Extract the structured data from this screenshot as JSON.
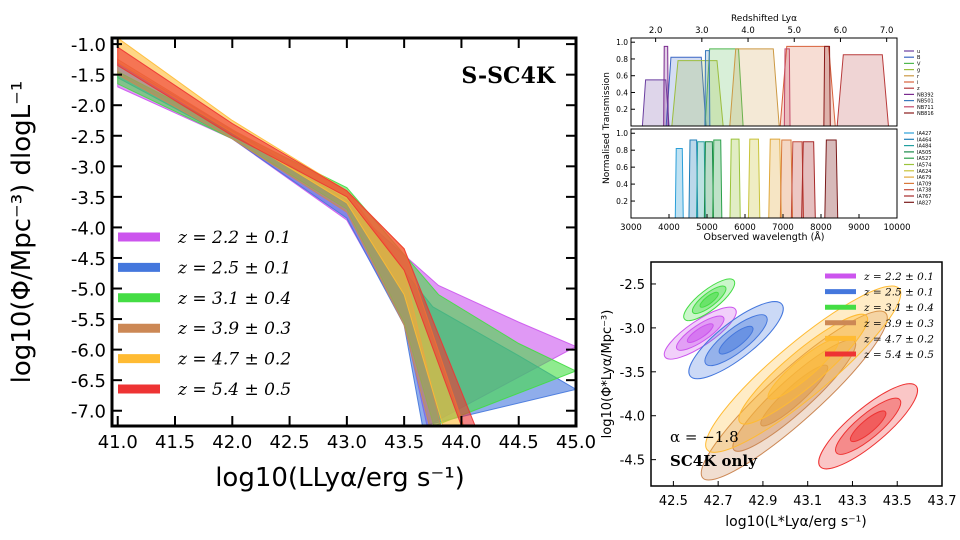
{
  "chart_data": [
    {
      "type": "area",
      "panel": "main-lf",
      "annotation": "S-SC4K",
      "xlabel": "log10(LLyα/erg s⁻¹)",
      "ylabel": "log10(Φ/Mpc⁻³) dlogL⁻¹",
      "xlim": [
        40.95,
        45.0
      ],
      "ylim": [
        -7.25,
        -0.9
      ],
      "xticks": [
        "41.0",
        "41.5",
        "42.0",
        "42.5",
        "43.0",
        "43.5",
        "44.0",
        "44.5",
        "45.0"
      ],
      "yticks": [
        "-1.0",
        "-1.5",
        "-2.0",
        "-2.5",
        "-3.0",
        "-3.5",
        "-4.0",
        "-4.5",
        "-5.0",
        "-5.5",
        "-6.0",
        "-6.5",
        "-7.0"
      ],
      "legend_position": "lower-left",
      "series": [
        {
          "name": "z = 2.2 ± 0.1",
          "color": "#cc55ee",
          "logL_star": 42.69,
          "logPhi_star": -3.33,
          "alpha": -1.8,
          "upper": [
            [
              41.0,
              -1.45
            ],
            [
              42.0,
              -2.45
            ],
            [
              43.0,
              -3.62
            ],
            [
              43.8,
              -4.95
            ],
            [
              44.5,
              -5.55
            ],
            [
              45.0,
              -5.95
            ]
          ],
          "lower": [
            [
              41.0,
              -1.7
            ],
            [
              42.0,
              -2.55
            ],
            [
              43.0,
              -3.88
            ],
            [
              43.5,
              -5.55
            ],
            [
              43.7,
              -7.25
            ]
          ]
        },
        {
          "name": "z = 2.5 ± 0.1",
          "color": "#4477dd",
          "logL_star": 42.76,
          "logPhi_star": -3.18,
          "alpha": -1.8,
          "upper": [
            [
              41.0,
              -1.3
            ],
            [
              42.0,
              -2.4
            ],
            [
              43.0,
              -3.55
            ],
            [
              43.75,
              -5.3
            ],
            [
              44.5,
              -6.1
            ],
            [
              45.0,
              -6.65
            ]
          ],
          "lower": [
            [
              41.0,
              -1.55
            ],
            [
              42.0,
              -2.55
            ],
            [
              43.0,
              -3.85
            ],
            [
              43.5,
              -5.6
            ],
            [
              43.66,
              -7.25
            ]
          ]
        },
        {
          "name": "z = 3.1 ± 0.4",
          "color": "#44dd44",
          "logL_star": 42.8,
          "logPhi_star": -2.91,
          "alpha": -1.8,
          "upper": [
            [
              41.0,
              -1.45
            ],
            [
              42.0,
              -2.42
            ],
            [
              43.0,
              -3.35
            ],
            [
              43.8,
              -5.1
            ],
            [
              44.5,
              -5.9
            ],
            [
              45.0,
              -6.35
            ]
          ],
          "lower": [
            [
              41.0,
              -1.65
            ],
            [
              42.0,
              -2.55
            ],
            [
              43.0,
              -3.7
            ],
            [
              43.5,
              -5.55
            ],
            [
              43.76,
              -7.25
            ]
          ]
        },
        {
          "name": "z = 3.9 ± 0.3",
          "color": "#cc8855",
          "logL_star": 42.93,
          "logPhi_star": -3.56,
          "alpha": -1.8,
          "upper": [
            [
              41.0,
              -1.25
            ],
            [
              42.0,
              -2.4
            ],
            [
              43.0,
              -3.4
            ],
            [
              43.5,
              -4.7
            ],
            [
              43.82,
              -7.25
            ]
          ],
          "lower": [
            [
              41.0,
              -1.5
            ],
            [
              42.0,
              -2.55
            ],
            [
              43.0,
              -3.75
            ],
            [
              43.5,
              -5.6
            ],
            [
              43.72,
              -7.25
            ]
          ]
        },
        {
          "name": "z = 4.7 ± 0.2",
          "color": "#ffbb33",
          "logL_star": 43.05,
          "logPhi_star": -3.73,
          "alpha": -1.8,
          "upper": [
            [
              41.0,
              -0.9
            ],
            [
              42.0,
              -2.25
            ],
            [
              43.0,
              -3.4
            ],
            [
              43.5,
              -4.35
            ],
            [
              44.02,
              -7.25
            ]
          ],
          "lower": [
            [
              41.0,
              -1.3
            ],
            [
              42.0,
              -2.45
            ],
            [
              43.0,
              -3.6
            ],
            [
              43.5,
              -5.1
            ],
            [
              43.84,
              -7.25
            ]
          ]
        },
        {
          "name": "z = 5.4 ± 0.5",
          "color": "#ee3333",
          "logL_star": 43.3,
          "logPhi_star": -4.17,
          "alpha": -1.8,
          "upper": [
            [
              41.0,
              -1.05
            ],
            [
              42.0,
              -2.3
            ],
            [
              43.0,
              -3.4
            ],
            [
              43.5,
              -4.35
            ],
            [
              44.12,
              -7.25
            ]
          ],
          "lower": [
            [
              41.0,
              -1.35
            ],
            [
              42.0,
              -2.5
            ],
            [
              43.0,
              -3.5
            ],
            [
              43.5,
              -4.7
            ],
            [
              44.0,
              -7.25
            ]
          ]
        }
      ]
    },
    {
      "type": "area",
      "panel": "filter-transmission",
      "top_axis_label": "Redshifted Lyα",
      "top_ticks": [
        "2.0",
        "3.0",
        "4.0",
        "5.0",
        "6.0",
        "7.0"
      ],
      "xlabel": "Observed wavelength (Å)",
      "ylabel": "Normalised Transmission",
      "xlim": [
        3000,
        10000
      ],
      "ylim": [
        0,
        1.05
      ],
      "xticks": [
        "3000",
        "4000",
        "5000",
        "6000",
        "7000",
        "8000",
        "9000",
        "10000"
      ],
      "yticks": [
        "0.2",
        "0.4",
        "0.6",
        "0.8",
        "1.0"
      ],
      "broad_legend": [
        "u",
        "B",
        "V",
        "g",
        "r",
        "i",
        "z",
        "NB392",
        "NB501",
        "NB711",
        "NB816"
      ],
      "broad_colors": [
        "#6b3fa0",
        "#3a66c4",
        "#4fb84f",
        "#9bbd3c",
        "#cc9944",
        "#d9623b",
        "#b83a3a",
        "#7a2a8f",
        "#3a7abd",
        "#c44a6a",
        "#8a1a1a"
      ],
      "broad_filters": [
        {
          "center": 3650,
          "width": 700,
          "peak": 0.55
        },
        {
          "center": 4450,
          "width": 1050,
          "peak": 0.82
        },
        {
          "center": 5450,
          "width": 1000,
          "peak": 0.92
        },
        {
          "center": 4750,
          "width": 1350,
          "peak": 0.78
        },
        {
          "center": 6250,
          "width": 1300,
          "peak": 0.92
        },
        {
          "center": 7650,
          "width": 1450,
          "peak": 0.95
        },
        {
          "center": 9100,
          "width": 1350,
          "peak": 0.85
        },
        {
          "center": 3920,
          "width": 120,
          "peak": 0.95
        },
        {
          "center": 5010,
          "width": 130,
          "peak": 0.9
        },
        {
          "center": 7110,
          "width": 150,
          "peak": 0.92
        },
        {
          "center": 8160,
          "width": 170,
          "peak": 0.95
        }
      ],
      "medium_legend": [
        "IA427",
        "IA464",
        "IA484",
        "IA505",
        "IA527",
        "IA574",
        "IA624",
        "IA679",
        "IA709",
        "IA738",
        "IA767",
        "IA827"
      ],
      "medium_colors": [
        "#2b9fd8",
        "#1f7fb8",
        "#22a0a0",
        "#1a8a4a",
        "#2aa04a",
        "#9bc43a",
        "#c9c43a",
        "#e0a83a",
        "#d97a3a",
        "#c44a3a",
        "#a82a2a",
        "#7a1a1a"
      ],
      "medium_filters": [
        {
          "center": 4270,
          "width": 210,
          "peak": 0.82
        },
        {
          "center": 4640,
          "width": 230,
          "peak": 0.92
        },
        {
          "center": 4840,
          "width": 230,
          "peak": 0.9
        },
        {
          "center": 5050,
          "width": 240,
          "peak": 0.9
        },
        {
          "center": 5270,
          "width": 240,
          "peak": 0.92
        },
        {
          "center": 5740,
          "width": 270,
          "peak": 0.93
        },
        {
          "center": 6240,
          "width": 300,
          "peak": 0.93
        },
        {
          "center": 6790,
          "width": 330,
          "peak": 0.93
        },
        {
          "center": 7090,
          "width": 320,
          "peak": 0.92
        },
        {
          "center": 7380,
          "width": 320,
          "peak": 0.9
        },
        {
          "center": 7670,
          "width": 360,
          "peak": 0.9
        },
        {
          "center": 8270,
          "width": 340,
          "peak": 0.92
        }
      ]
    },
    {
      "type": "scatter",
      "panel": "schechter-contours",
      "xlabel": "log10(L*Lyα/erg s⁻¹)",
      "ylabel": "log10(Φ*Lyα/Mpc⁻³)",
      "xlim": [
        42.4,
        43.7
      ],
      "ylim": [
        -4.8,
        -2.25
      ],
      "xticks": [
        "42.5",
        "42.7",
        "42.9",
        "43.1",
        "43.3",
        "43.5",
        "43.7"
      ],
      "yticks": [
        "-2.5",
        "-3.0",
        "-3.5",
        "-4.0",
        "-4.5"
      ],
      "annotation_alpha": "α = −1.8",
      "annotation_sample": "SC4K only",
      "legend_position": "top-right",
      "contours": [
        {
          "name": "z = 2.2 ± 0.1",
          "color": "#cc55ee",
          "center": [
            42.62,
            -3.06
          ],
          "rx": 0.19,
          "ry": 0.035,
          "angle_deg": -34
        },
        {
          "name": "z = 2.5 ± 0.1",
          "color": "#4477dd",
          "center": [
            42.78,
            -3.14
          ],
          "rx": 0.26,
          "ry": 0.05,
          "angle_deg": -38
        },
        {
          "name": "z = 3.1 ± 0.4",
          "color": "#44dd44",
          "center": [
            42.66,
            -2.68
          ],
          "rx": 0.14,
          "ry": 0.028,
          "angle_deg": -38
        },
        {
          "name": "z = 3.9 ± 0.3",
          "color": "#cc8855",
          "center": [
            43.04,
            -3.77
          ],
          "rx": 0.55,
          "ry": 0.07,
          "angle_deg": -42
        },
        {
          "name": "z = 4.7 ± 0.2",
          "color": "#ffbb33",
          "center": [
            43.08,
            -3.47
          ],
          "rx": 0.56,
          "ry": 0.075,
          "angle_deg": -40
        },
        {
          "name": "z = 5.4 ± 0.5",
          "color": "#ee3333",
          "center": [
            43.37,
            -4.12
          ],
          "rx": 0.28,
          "ry": 0.05,
          "angle_deg": -40
        }
      ]
    }
  ]
}
